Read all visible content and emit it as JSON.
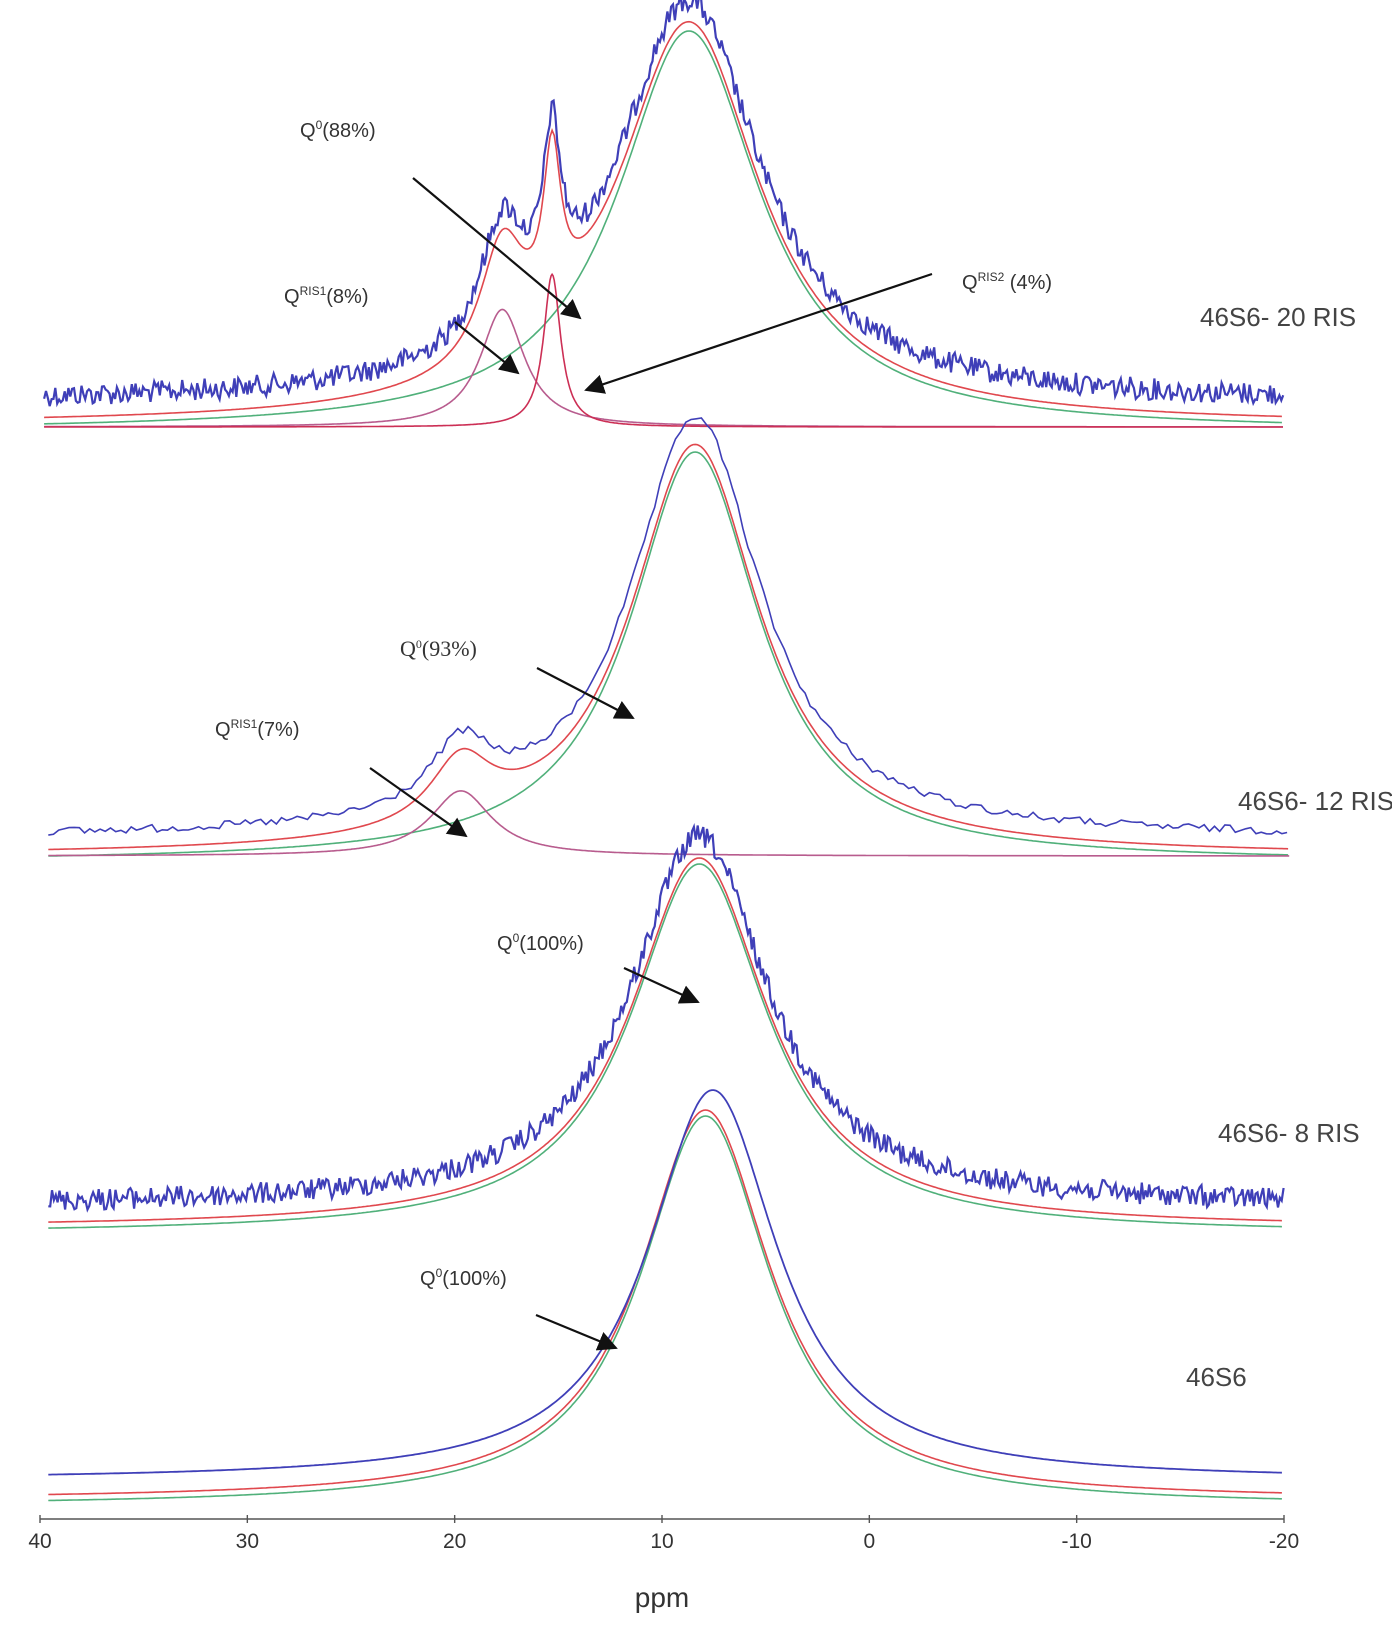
{
  "chart_data": {
    "type": "line",
    "xlabel": "ppm",
    "xlim": [
      40,
      -20
    ],
    "xticks": [
      40,
      30,
      20,
      10,
      0,
      -10,
      -20
    ],
    "xtick_labels": [
      "40",
      "30",
      "20",
      "10",
      "0",
      "-10",
      "-20"
    ],
    "grid": false,
    "colors": {
      "experimental": "#3f3fb8",
      "total_fit": "#e0484e",
      "q0": "#50b07a",
      "ris1": "#b85c8e",
      "ris2": "#cc2f55",
      "axis": "#555555",
      "arrow": "#111111"
    },
    "panels": [
      {
        "sample": "46S6- 20 RIS",
        "noise_level": "high",
        "components": [
          {
            "label_base": "Q",
            "label_sup": "0",
            "label_tail": "(88%)",
            "percent": 88,
            "center_ppm": 8.7,
            "fwhm_ppm": 8.4
          },
          {
            "label_base": "Q",
            "label_sup": "RIS1",
            "label_tail": "(8%)",
            "percent": 8,
            "center_ppm": 17.7,
            "fwhm_ppm": 2.6
          },
          {
            "label_base": "Q",
            "label_sup": "RIS2",
            "label_tail": " (4%)",
            "percent": 4,
            "center_ppm": 15.3,
            "fwhm_ppm": 1.0
          }
        ]
      },
      {
        "sample": "46S6- 12 RIS",
        "noise_level": "low",
        "components": [
          {
            "label_base": "Q",
            "label_sup": "0",
            "label_tail": "(93%)",
            "percent": 93,
            "center_ppm": 8.4,
            "fwhm_ppm": 7.6
          },
          {
            "label_base": "Q",
            "label_sup": "RIS1",
            "label_tail": "(7%)",
            "percent": 7,
            "center_ppm": 19.7,
            "fwhm_ppm": 3.6
          }
        ]
      },
      {
        "sample": "46S6- 8 RIS",
        "noise_level": "high",
        "components": [
          {
            "label_base": "Q",
            "label_sup": "0",
            "label_tail": "(100%)",
            "percent": 100,
            "center_ppm": 8.2,
            "fwhm_ppm": 8.0
          }
        ]
      },
      {
        "sample": "46S6",
        "noise_level": "none",
        "components": [
          {
            "label_base": "Q",
            "label_sup": "0",
            "label_tail": "(100%)",
            "percent": 100,
            "center_ppm": 7.9,
            "fwhm_ppm": 7.6
          }
        ]
      }
    ]
  }
}
